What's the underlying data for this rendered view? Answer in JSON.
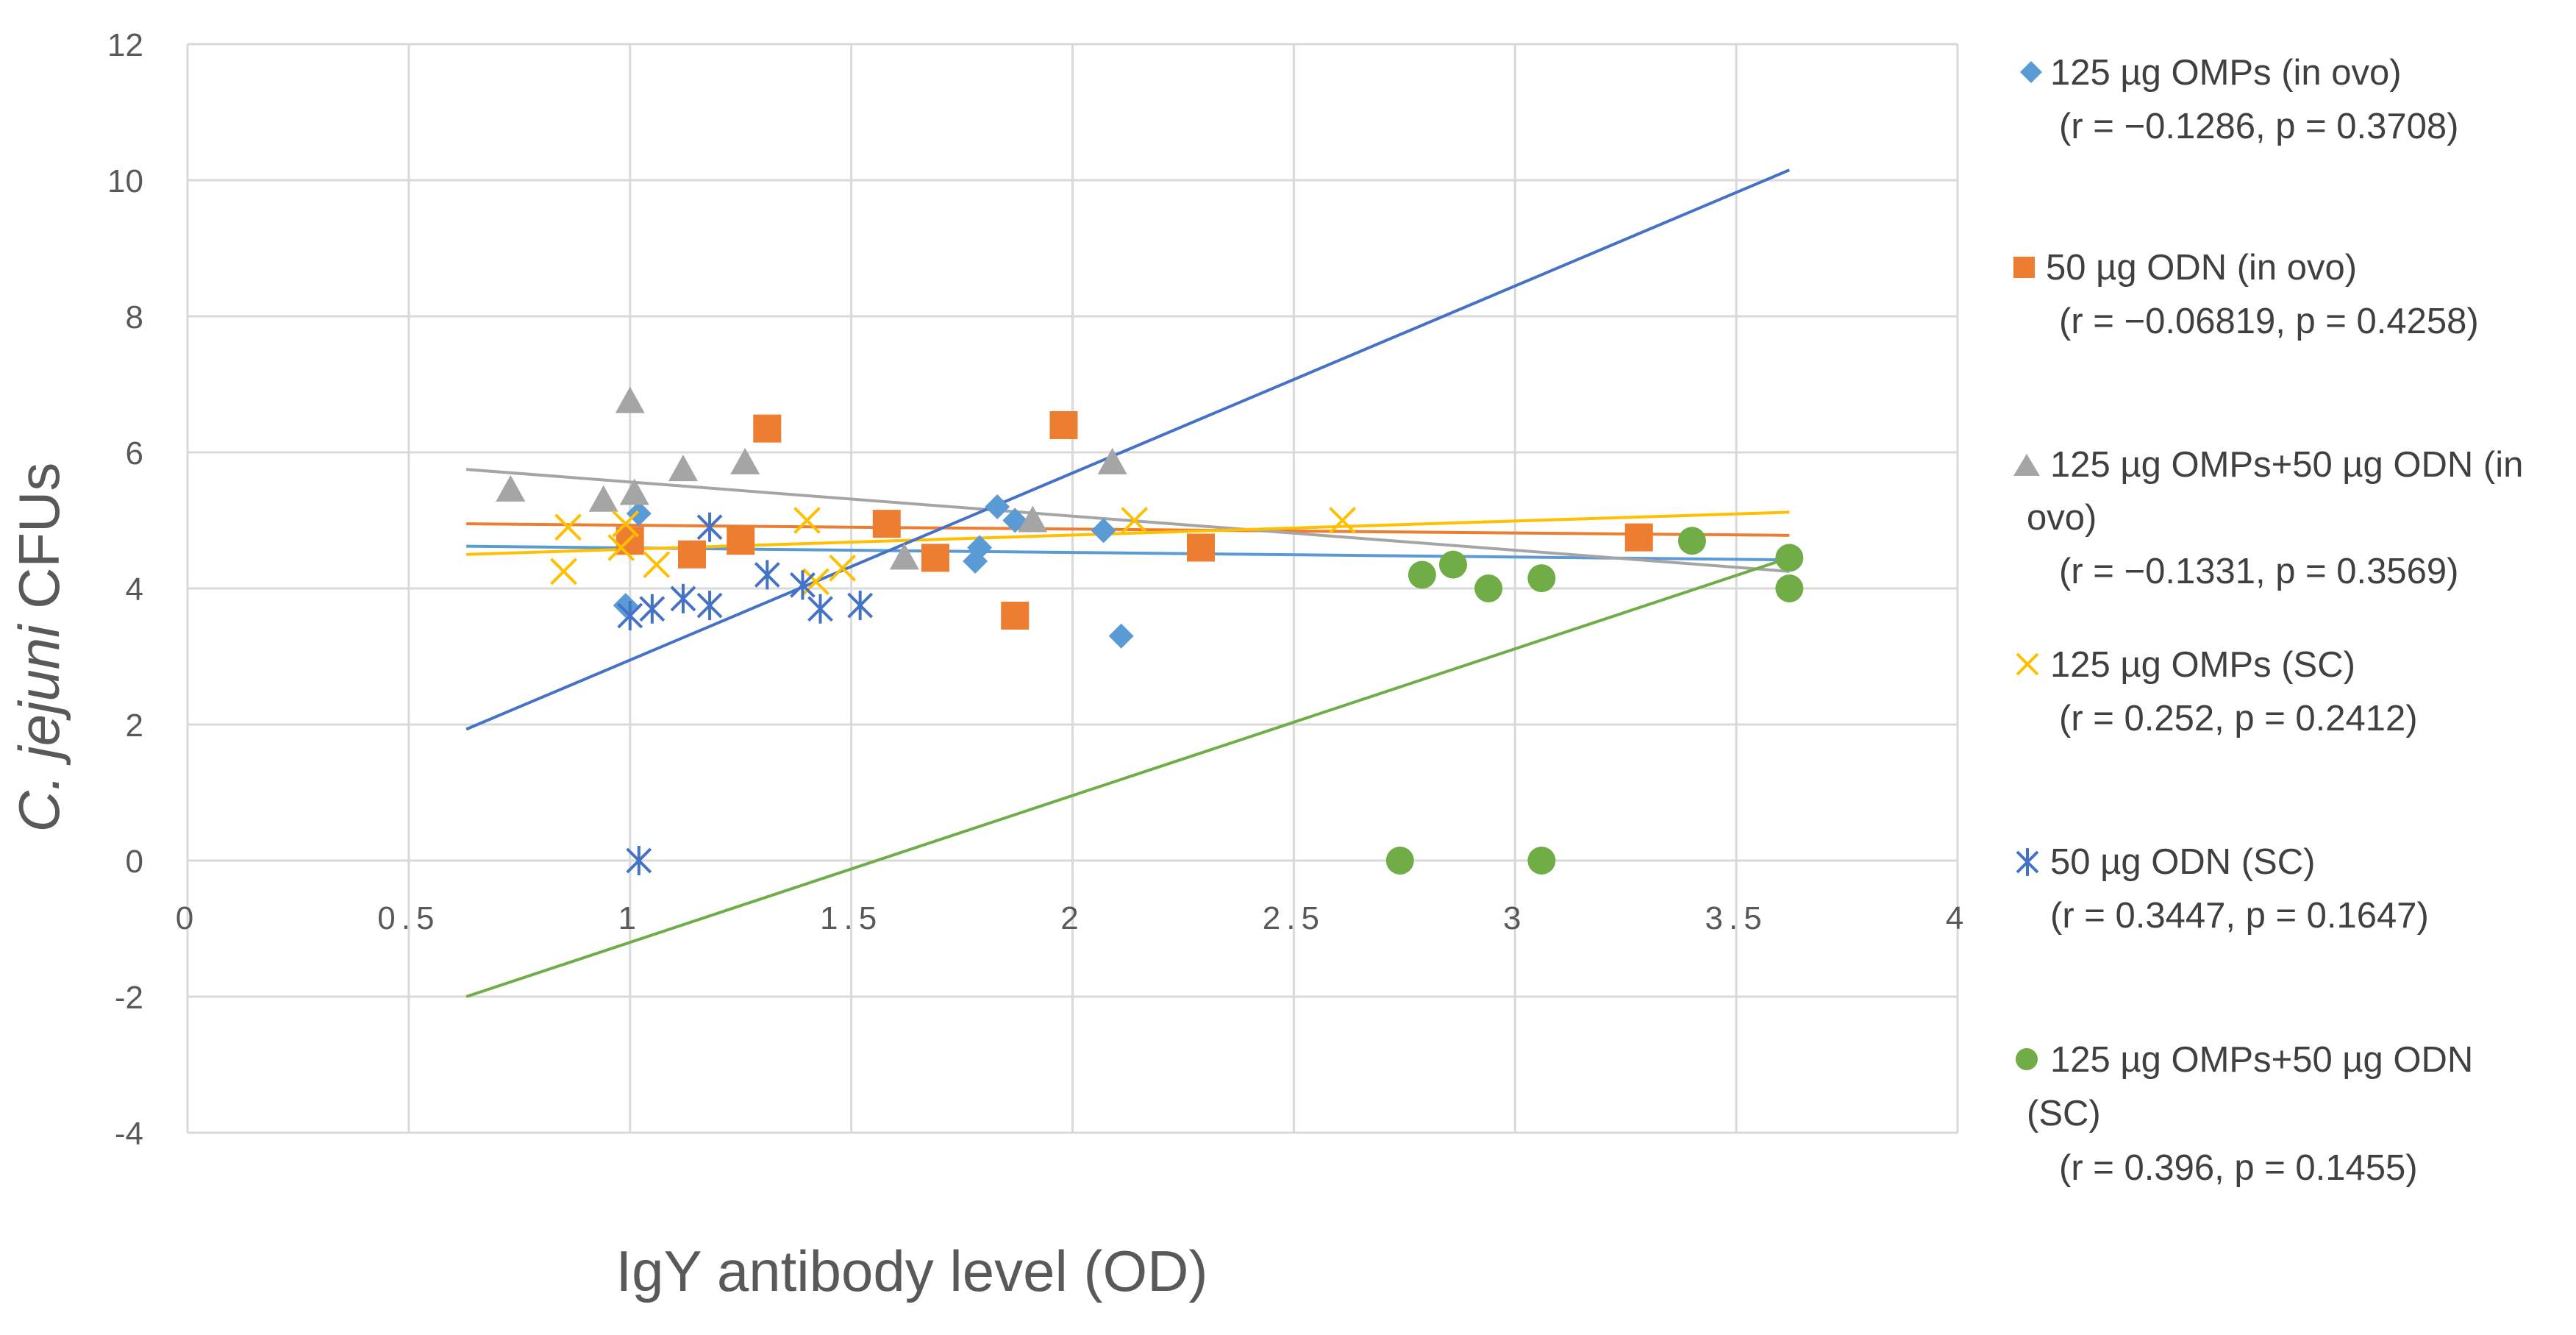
{
  "chart_data": {
    "type": "scatter",
    "title": "",
    "xlabel": "IgY antibody level (OD)",
    "ylabel_italic": "C. jejuni",
    "ylabel_rest": " CFUs",
    "xlim": [
      0,
      4
    ],
    "ylim": [
      -4,
      12
    ],
    "x_ticks": [
      "0",
      "0.5",
      "1",
      "1.5",
      "2",
      "2.5",
      "3",
      "3.5",
      "4"
    ],
    "y_ticks": [
      "-4",
      "-2",
      "0",
      "2",
      "4",
      "6",
      "8",
      "10",
      "12"
    ],
    "grid": true,
    "legend_position": "right",
    "series": [
      {
        "name": "125 µg OMPs (in ovo)",
        "stat": "(r = −0.1286, p = 0.3708)",
        "color": "#5B9BD5",
        "marker": "diamond",
        "points": [
          [
            0.99,
            3.75
          ],
          [
            1.02,
            5.1
          ],
          [
            1.78,
            4.4
          ],
          [
            1.79,
            4.6
          ],
          [
            1.83,
            5.2
          ],
          [
            1.87,
            5.0
          ],
          [
            2.07,
            4.85
          ],
          [
            2.11,
            3.3
          ],
          [
            3.62,
            4.45
          ]
        ],
        "trendline": [
          [
            0.63,
            4.62
          ],
          [
            3.62,
            4.42
          ]
        ]
      },
      {
        "name": "50 µg ODN (in ovo)",
        "stat": "(r = −0.06819, p = 0.4258)",
        "color": "#ED7D31",
        "marker": "square",
        "points": [
          [
            1.0,
            4.7
          ],
          [
            1.14,
            4.5
          ],
          [
            1.25,
            4.7
          ],
          [
            1.31,
            6.35
          ],
          [
            1.58,
            4.95
          ],
          [
            1.69,
            4.45
          ],
          [
            1.87,
            3.6
          ],
          [
            1.98,
            6.4
          ],
          [
            2.29,
            4.6
          ],
          [
            3.28,
            4.75
          ]
        ],
        "trendline": [
          [
            0.63,
            4.95
          ],
          [
            3.62,
            4.78
          ]
        ]
      },
      {
        "name_line1": "125 µg OMPs+50 µg ODN (in",
        "name_line2": "ovo)",
        "stat": "(r = −0.1331, p = 0.3569)",
        "color": "#A5A5A5",
        "marker": "triangle",
        "points": [
          [
            0.73,
            5.45
          ],
          [
            0.94,
            5.3
          ],
          [
            1.0,
            6.75
          ],
          [
            1.01,
            5.4
          ],
          [
            1.12,
            5.75
          ],
          [
            1.26,
            5.85
          ],
          [
            1.62,
            4.45
          ],
          [
            1.91,
            5.0
          ],
          [
            2.09,
            5.85
          ]
        ],
        "trendline": [
          [
            0.63,
            5.75
          ],
          [
            3.62,
            4.25
          ]
        ]
      },
      {
        "name": "125 µg OMPs (SC)",
        "stat": "(r = 0.252, p = 0.2412)",
        "color": "#FFC000",
        "marker": "x",
        "points": [
          [
            0.85,
            4.25
          ],
          [
            0.86,
            4.9
          ],
          [
            0.98,
            4.6
          ],
          [
            0.99,
            4.95
          ],
          [
            1.06,
            4.35
          ],
          [
            1.4,
            5.0
          ],
          [
            1.42,
            4.1
          ],
          [
            1.48,
            4.3
          ],
          [
            2.14,
            5.0
          ],
          [
            2.61,
            5.0
          ]
        ],
        "trendline": [
          [
            0.63,
            4.5
          ],
          [
            3.62,
            5.12
          ]
        ]
      },
      {
        "name": "50 µg ODN (SC)",
        "stat": "(r = 0.3447, p = 0.1647)",
        "color": "#4472C4",
        "marker": "asterisk",
        "points": [
          [
            1.0,
            3.6
          ],
          [
            1.02,
            0.0
          ],
          [
            1.05,
            3.7
          ],
          [
            1.12,
            3.85
          ],
          [
            1.18,
            3.75
          ],
          [
            1.18,
            4.9
          ],
          [
            1.31,
            4.2
          ],
          [
            1.39,
            4.05
          ],
          [
            1.43,
            3.7
          ],
          [
            1.52,
            3.75
          ]
        ],
        "trendline": [
          [
            0.63,
            1.93
          ],
          [
            3.62,
            10.15
          ]
        ]
      },
      {
        "name_line1": "125 µg OMPs+50 µg ODN",
        "name_line2": "(SC)",
        "stat": "(r = 0.396, p = 0.1455)",
        "color": "#70AD47",
        "marker": "circle",
        "points": [
          [
            2.74,
            0.0
          ],
          [
            2.79,
            4.2
          ],
          [
            2.86,
            4.35
          ],
          [
            2.94,
            4.0
          ],
          [
            3.06,
            0.0
          ],
          [
            3.06,
            4.15
          ],
          [
            3.4,
            4.7
          ],
          [
            3.62,
            4.45
          ],
          [
            3.62,
            4.0
          ]
        ],
        "trendline": [
          [
            0.63,
            -2.0
          ],
          [
            3.62,
            4.45
          ]
        ]
      }
    ]
  }
}
